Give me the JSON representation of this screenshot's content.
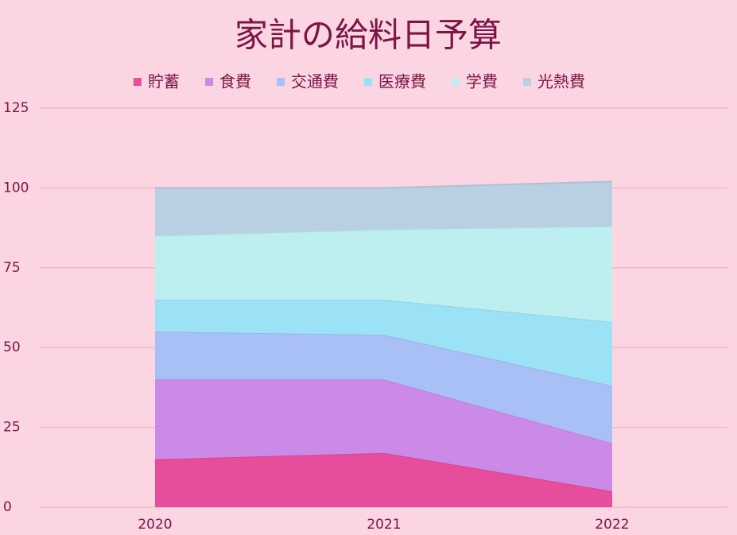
{
  "chart_data": {
    "type": "stacked_area",
    "title": "家計の給料日予算",
    "categories": [
      "2020",
      "2021",
      "2022"
    ],
    "series": [
      {
        "name": "貯蓄",
        "color": "#e64d9b",
        "values": [
          15,
          17,
          5
        ]
      },
      {
        "name": "食費",
        "color": "#cb8ae8",
        "values": [
          25,
          23,
          15
        ]
      },
      {
        "name": "交通費",
        "color": "#a8c0f5",
        "values": [
          15,
          14,
          18
        ]
      },
      {
        "name": "医療費",
        "color": "#9ce2f7",
        "values": [
          10,
          11,
          20
        ]
      },
      {
        "name": "学費",
        "color": "#bdeff0",
        "values": [
          20,
          22,
          30
        ]
      },
      {
        "name": "光熱費",
        "color": "#b9d0e2",
        "values": [
          15,
          13,
          14
        ]
      }
    ],
    "ylim": [
      0,
      125
    ],
    "yticks": [
      0,
      25,
      50,
      75,
      100,
      125
    ],
    "grid": true
  }
}
